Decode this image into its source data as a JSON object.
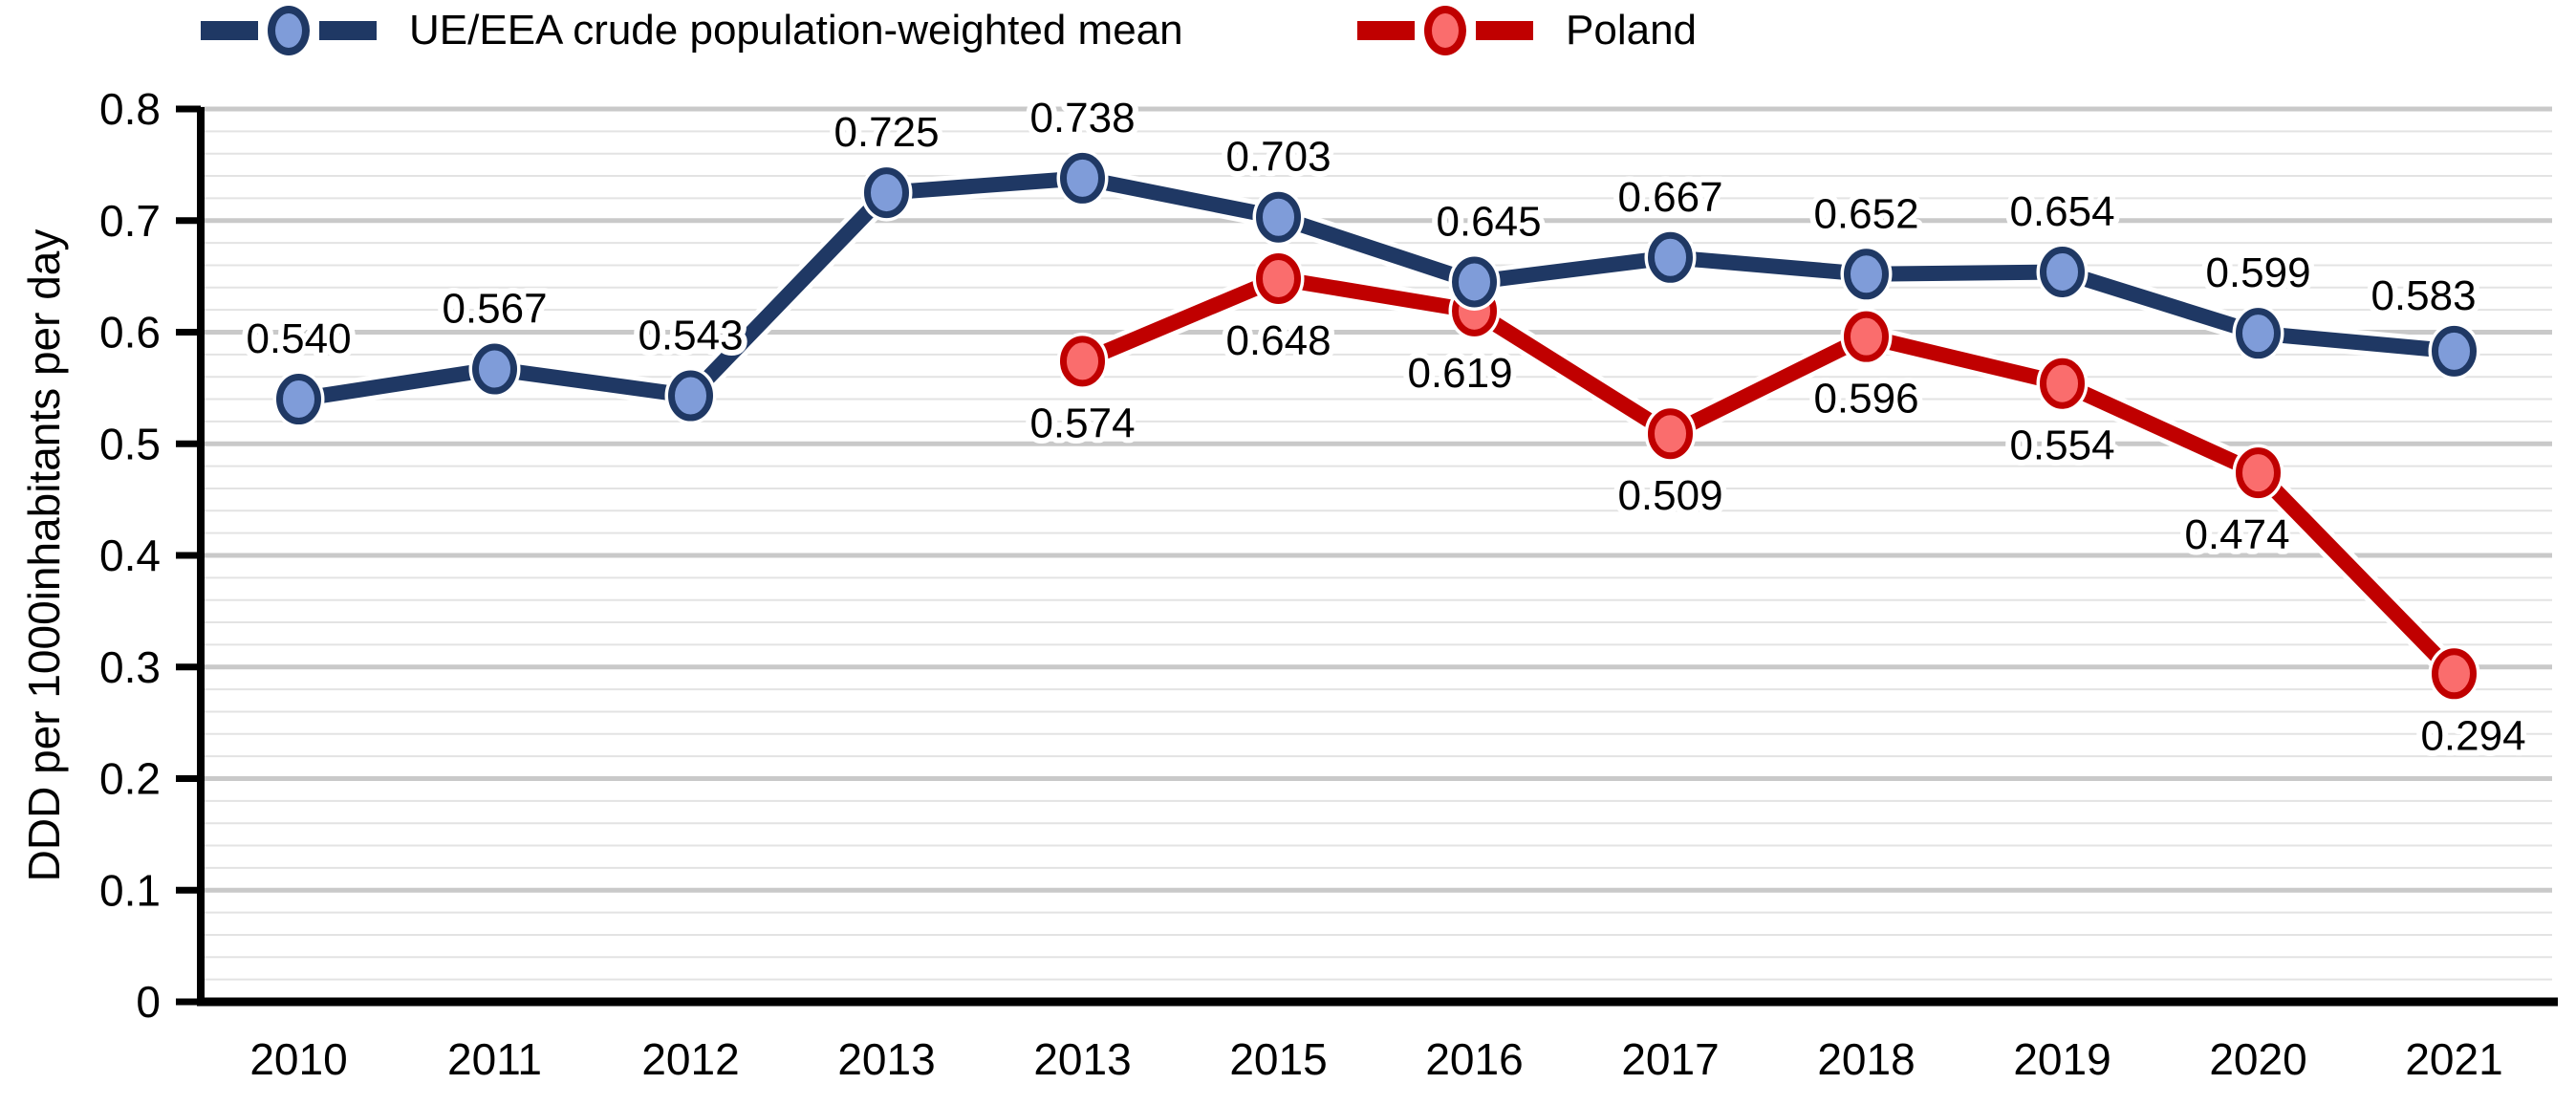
{
  "chart_data": {
    "type": "line",
    "title": "",
    "xlabel": "",
    "ylabel": "DDD per 1000inhabitants per day",
    "ylim": [
      0,
      0.8
    ],
    "ytick_step": 0.1,
    "minor_ytick_step": 0.02,
    "ytick_labels": [
      "0",
      "0.1",
      "0.2",
      "0.3",
      "0.4",
      "0.5",
      "0.6",
      "0.7",
      "0.8"
    ],
    "grid": "horizontal major and minor gridlines on, vertical off",
    "legend_position": "top",
    "categories": [
      "2010",
      "2011",
      "2012",
      "2013",
      "2013",
      "2015",
      "2016",
      "2017",
      "2018",
      "2019",
      "2020",
      "2021"
    ],
    "series": [
      {
        "name": "UE/EEA crude population-weighted mean",
        "line_color": "#1F3864",
        "marker_fill": "#7F9CD9",
        "marker_border": "#1F3864",
        "label_placement": "above",
        "values": [
          0.54,
          0.567,
          0.543,
          0.725,
          0.738,
          0.703,
          0.645,
          0.667,
          0.652,
          0.654,
          0.599,
          0.583
        ],
        "labels": [
          "0.540",
          "0.567",
          "0.543",
          "0.725",
          "0.738",
          "0.703",
          "0.645",
          "0.667",
          "0.652",
          "0.654",
          "0.599",
          "0.583"
        ]
      },
      {
        "name": "Poland",
        "line_color": "#C00000",
        "marker_fill": "#FA6D6D",
        "marker_border": "#C00000",
        "label_placement": "below",
        "values": [
          null,
          null,
          null,
          null,
          0.574,
          0.648,
          0.619,
          0.509,
          0.596,
          0.554,
          0.474,
          0.294
        ],
        "labels": [
          null,
          null,
          null,
          null,
          "0.574",
          "0.648",
          "0.619",
          "0.509",
          "0.596",
          "0.554",
          "0.474",
          "0.294"
        ]
      }
    ],
    "style_colors": {
      "major_gridline": "#C9C9C9",
      "minor_gridline": "#E3E3E3",
      "axis": "#000000",
      "label_text": "#000000",
      "background": "#FFFFFF"
    }
  }
}
